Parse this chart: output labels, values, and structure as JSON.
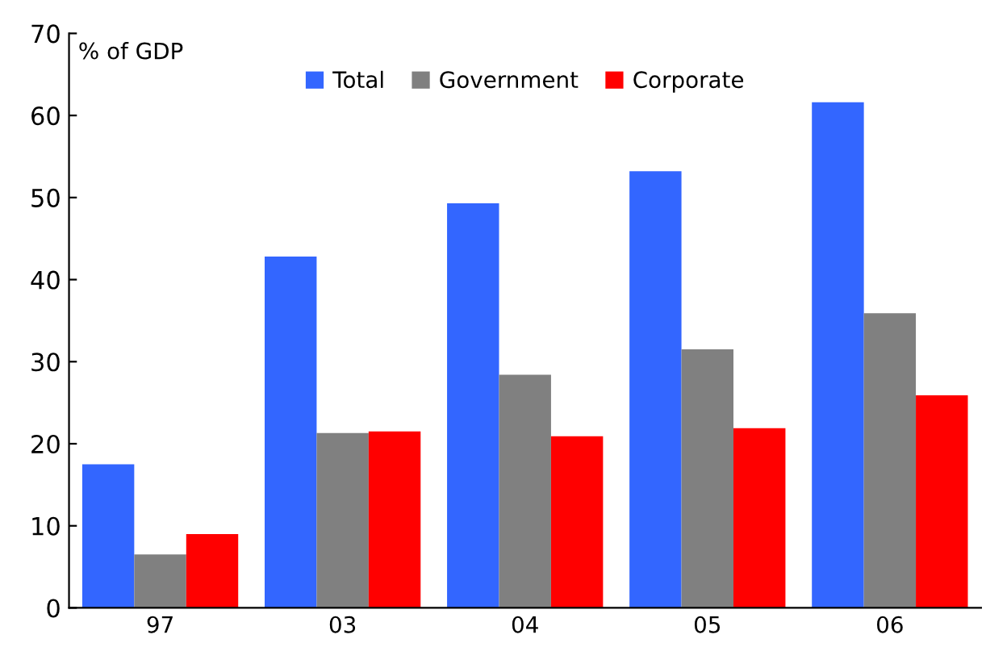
{
  "chart_data": {
    "type": "bar",
    "ylabel": "% of GDP",
    "categories": [
      "97",
      "03",
      "04",
      "05",
      "06"
    ],
    "series": [
      {
        "name": "Total",
        "color": "#3366ff",
        "values": [
          17.5,
          42.8,
          49.3,
          53.2,
          61.6
        ]
      },
      {
        "name": "Government",
        "color": "#808080",
        "values": [
          6.5,
          21.3,
          28.4,
          31.5,
          35.9
        ]
      },
      {
        "name": "Corporate",
        "color": "#ff0000",
        "values": [
          9.0,
          21.5,
          20.9,
          21.9,
          25.9
        ]
      }
    ],
    "ylim": [
      0,
      70
    ],
    "yticks": [
      0,
      10,
      20,
      30,
      40,
      50,
      60,
      70
    ],
    "grid": false,
    "legend": "top"
  }
}
